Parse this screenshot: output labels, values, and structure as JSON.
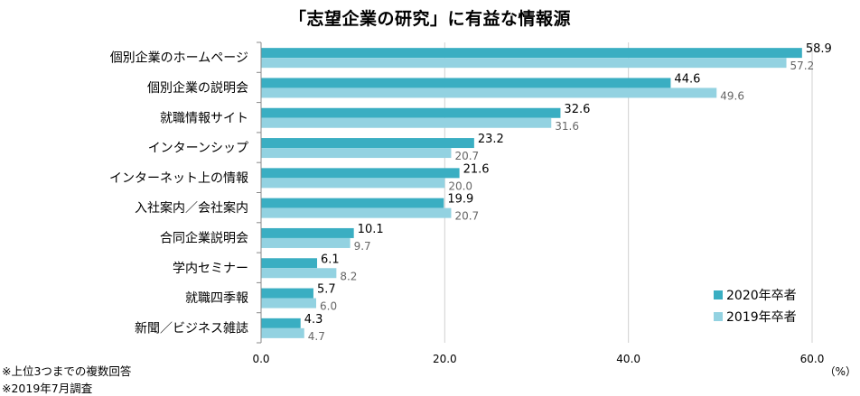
{
  "chart_data": {
    "type": "bar",
    "orientation": "horizontal",
    "title": "「志望企業の研究」に有益な情報源",
    "categories": [
      "個別企業のホームページ",
      "個別企業の説明会",
      "就職情報サイト",
      "インターンシップ",
      "インターネット上の情報",
      "入社案内／会社案内",
      "合同企業説明会",
      "学内セミナー",
      "就職四季報",
      "新聞／ビジネス雑誌"
    ],
    "series": [
      {
        "name": "2020年卒者",
        "color": "#3aaec2",
        "values": [
          58.9,
          44.6,
          32.6,
          23.2,
          21.6,
          19.9,
          10.1,
          6.1,
          5.7,
          4.3
        ],
        "labels": [
          "58.9",
          "44.6",
          "32.6",
          "23.2",
          "21.6",
          "19.9",
          "10.1",
          "6.1",
          "5.7",
          "4.3"
        ]
      },
      {
        "name": "2019年卒者",
        "color": "#93d2e1",
        "values": [
          57.2,
          49.6,
          31.6,
          20.7,
          20.0,
          20.7,
          9.7,
          8.2,
          6.0,
          4.7
        ],
        "labels": [
          "57.2",
          "49.6",
          "31.6",
          "20.7",
          "20.0",
          "20.7",
          "9.7",
          "8.2",
          "6.0",
          "4.7"
        ]
      }
    ],
    "xlim": [
      0,
      60
    ],
    "xticks": [
      0,
      20,
      40,
      60
    ],
    "xtick_labels": [
      "0.0",
      "20.0",
      "40.0",
      "60.0"
    ],
    "xunit": "（%）",
    "legend_position": "bottom-right",
    "grid": true
  },
  "notes": [
    "※上位3つまでの複数回答",
    "※2019年7月調査"
  ]
}
